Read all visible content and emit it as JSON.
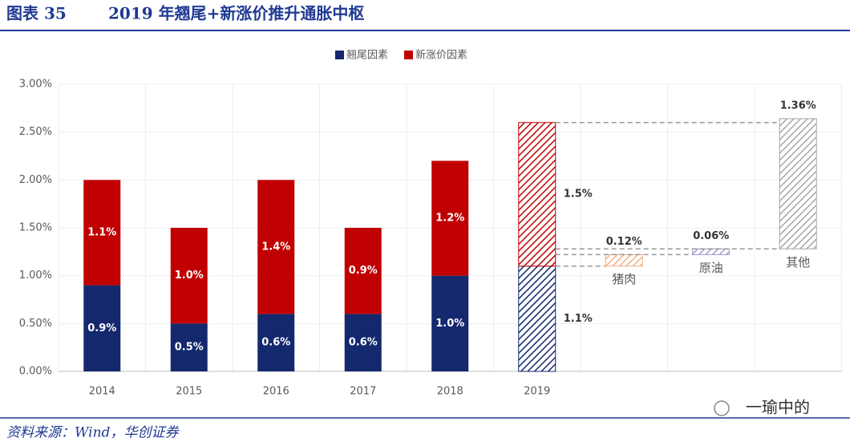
{
  "figure_label": "图表 35",
  "chart_data": {
    "type": "bar",
    "stacked": true,
    "title": "2019 年翘尾+新涨价推升通胀中枢",
    "categories": [
      "2014",
      "2015",
      "2016",
      "2017",
      "2018",
      "2019"
    ],
    "series": [
      {
        "name": "翘尾因素",
        "color": "#14286e",
        "values": [
          0.9,
          0.5,
          0.6,
          0.6,
          1.0,
          1.1
        ],
        "value_labels": [
          "0.9%",
          "0.5%",
          "0.6%",
          "0.6%",
          "1.0%",
          "1.1%"
        ]
      },
      {
        "name": "新涨价因素",
        "color": "#c00000",
        "values": [
          1.1,
          1.0,
          1.4,
          0.9,
          1.2,
          1.5
        ],
        "value_labels": [
          "1.1%",
          "1.0%",
          "1.4%",
          "0.9%",
          "1.2%",
          "1.5%"
        ]
      }
    ],
    "waterfall": {
      "categories": [
        "猪肉",
        "原油",
        "其他"
      ],
      "values": [
        0.12,
        0.06,
        1.36
      ],
      "value_labels": [
        "0.12%",
        "0.06%",
        "1.36%"
      ],
      "colors": [
        "#f4b183",
        "#9e9ad0",
        "#a6a6a6"
      ]
    },
    "ylim": [
      0,
      3
    ],
    "yticks": [
      {
        "value": 0,
        "label": "0.00%"
      },
      {
        "value": 0.5,
        "label": "0.50%"
      },
      {
        "value": 1,
        "label": "1.00%"
      },
      {
        "value": 1.5,
        "label": "1.50%"
      },
      {
        "value": 2,
        "label": "2.00%"
      },
      {
        "value": 2.5,
        "label": "2.50%"
      },
      {
        "value": 3,
        "label": "3.00%"
      }
    ],
    "grid": true,
    "legend": "top"
  },
  "source": "资料来源：Wind，华创证券",
  "watermark": "一瑜中的"
}
